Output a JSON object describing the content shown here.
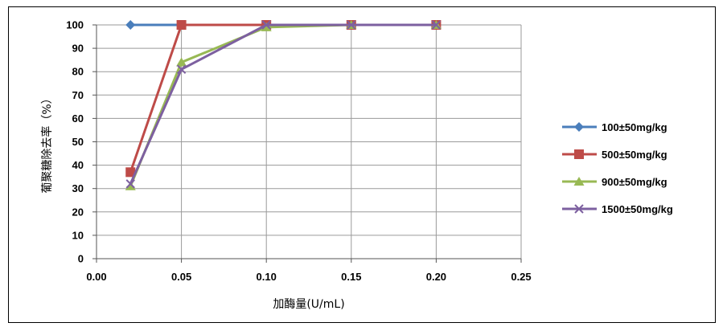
{
  "chart_data": {
    "type": "line",
    "title": "",
    "xlabel": "加酶量(U/mL)",
    "ylabel": "葡聚糖除去率（%）",
    "xlim": [
      0,
      0.25
    ],
    "ylim": [
      0,
      100
    ],
    "xticks": [
      "0.00",
      "0.05",
      "0.10",
      "0.15",
      "0.20",
      "0.25"
    ],
    "yticks": [
      "0",
      "10",
      "20",
      "30",
      "40",
      "50",
      "60",
      "70",
      "80",
      "90",
      "100"
    ],
    "x": [
      0.02,
      0.05,
      0.1,
      0.15,
      0.2
    ],
    "grid": true,
    "legend_position": "right",
    "series": [
      {
        "name": "100±50mg/kg",
        "values": [
          100,
          100,
          100,
          100,
          100
        ],
        "color": "#4a7ebb",
        "marker": "diamond"
      },
      {
        "name": "500±50mg/kg",
        "values": [
          37,
          100,
          100,
          100,
          100
        ],
        "color": "#be4b48",
        "marker": "square"
      },
      {
        "name": "900±50mg/kg",
        "values": [
          31,
          84,
          99,
          100,
          100
        ],
        "color": "#98b954",
        "marker": "triangle"
      },
      {
        "name": "1500±50mg/kg",
        "values": [
          32,
          81,
          100,
          100,
          100
        ],
        "color": "#7d60a0",
        "marker": "x"
      }
    ]
  }
}
